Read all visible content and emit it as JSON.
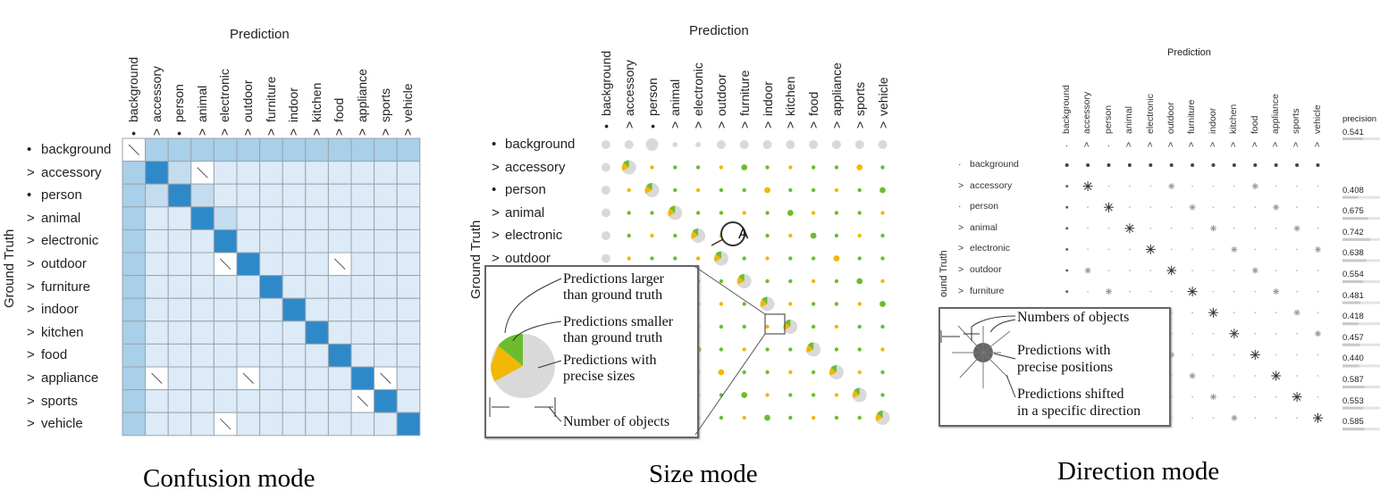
{
  "categories": [
    "background",
    "accessory",
    "person",
    "animal",
    "electronic",
    "outdoor",
    "furniture",
    "indoor",
    "kitchen",
    "food",
    "appliance",
    "sports",
    "vehicle"
  ],
  "markers": [
    "•",
    ">",
    "•",
    ">",
    ">",
    ">",
    ">",
    ">",
    ">",
    ">",
    ">",
    ">",
    ">"
  ],
  "direction_markers": [
    "·",
    ">",
    "·",
    ">",
    ">",
    ">",
    ">",
    ">",
    ">",
    ">",
    ">",
    ">",
    ">"
  ],
  "axis_prediction": "Prediction",
  "axis_ground_truth": "Ground Truth",
  "axis_ground_truth_cut": "ound Truth",
  "colors": {
    "diag": "#2e89c9",
    "off": "#dcebf7",
    "col0": "#a9cfe9",
    "grid": "#9aa5ad",
    "green": "#6cbd2d",
    "yellow": "#f2b705",
    "pie": "#d9d9d9"
  },
  "confusion": {
    "caption": "Confusion mode",
    "shade_mid": [
      [
        1,
        2
      ],
      [
        2,
        1
      ],
      [
        2,
        3
      ],
      [
        3,
        4
      ]
    ],
    "slashes": [
      [
        0,
        0
      ],
      [
        1,
        3
      ],
      [
        5,
        4
      ],
      [
        5,
        9
      ],
      [
        10,
        1
      ],
      [
        10,
        5
      ],
      [
        10,
        11
      ],
      [
        11,
        10
      ],
      [
        12,
        4
      ]
    ]
  },
  "size": {
    "caption": "Size mode",
    "callout": "A",
    "legend": {
      "larger": [
        "Predictions larger",
        "than ground truth"
      ],
      "smaller": [
        "Predictions smaller",
        "than ground truth"
      ],
      "precise": [
        "Predictions with",
        "precise sizes"
      ],
      "number": "Number of objects"
    }
  },
  "direction": {
    "caption": "Direction mode",
    "precision_header": "precision",
    "precision": [
      "0.541",
      "0.408",
      "0.675",
      "0.742",
      "0.638",
      "0.554",
      "0.481",
      "0.418",
      "0.457",
      "0.440",
      "0.587",
      "0.553",
      "0.585"
    ],
    "precision_values": [
      0.541,
      0.408,
      0.675,
      0.742,
      0.638,
      0.554,
      0.481,
      0.418,
      0.457,
      0.44,
      0.587,
      0.553,
      0.585
    ],
    "legend": {
      "number": "Numbers of objects",
      "precise": [
        "Predictions with",
        "precise positions"
      ],
      "shifted": [
        "Predictions shifted",
        "in a specific direction"
      ]
    }
  }
}
